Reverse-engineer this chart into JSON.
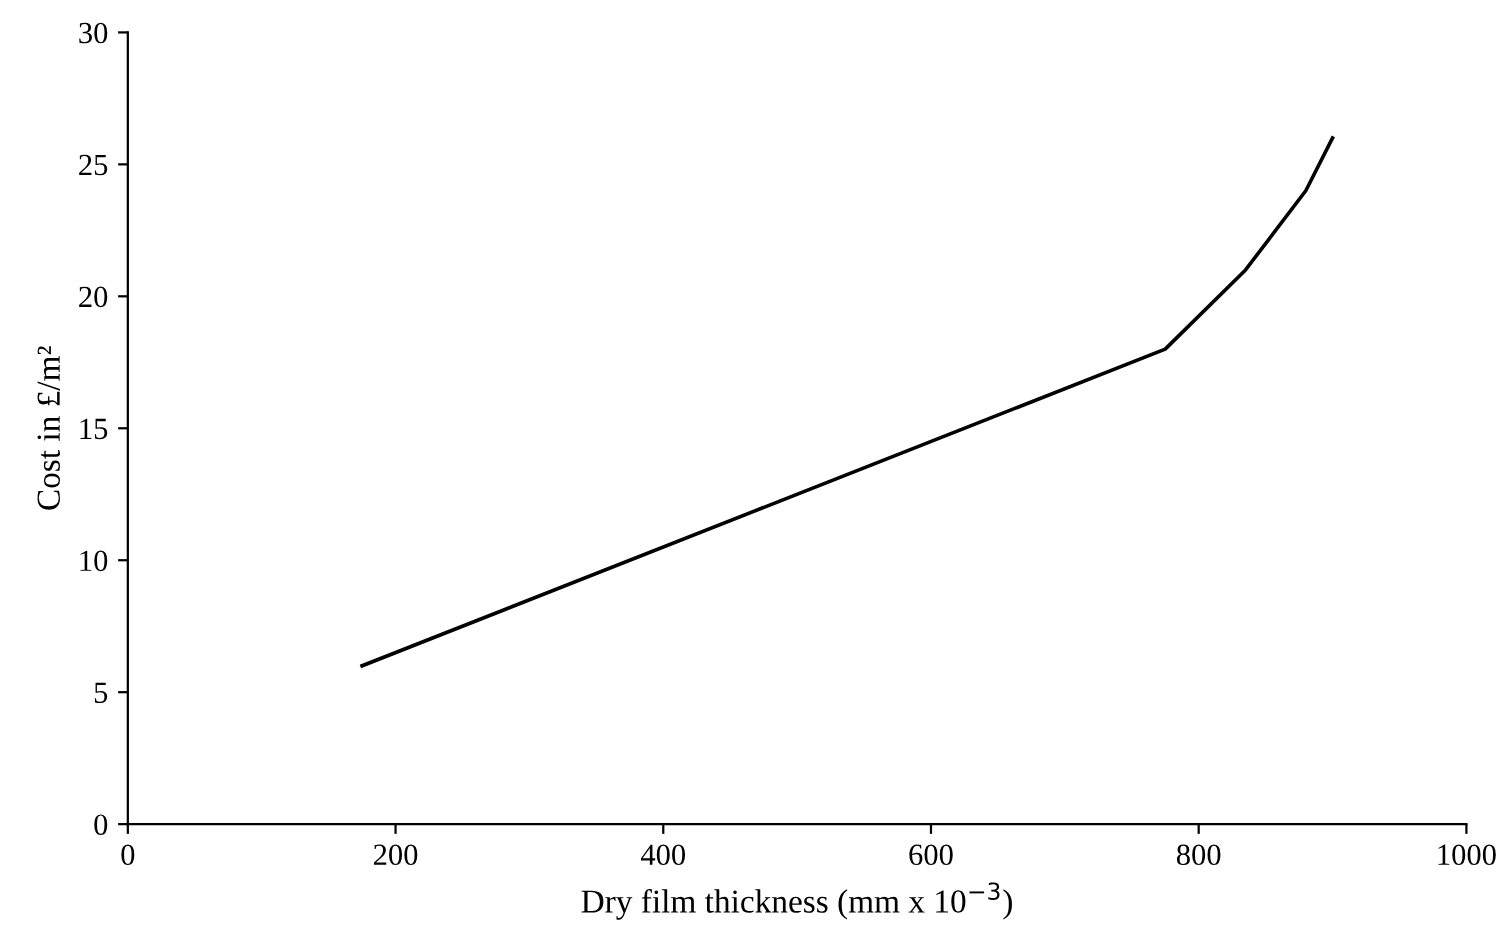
{
  "chart_data": {
    "type": "line",
    "xlabel": "Dry film thickness (mm x 10$^{−3}$)",
    "ylabel": "Cost in £/m²",
    "series": [
      {
        "color": "#000000",
        "x": [
          175,
          775,
          835,
          880,
          900
        ],
        "values": [
          6,
          18,
          21,
          24,
          26
        ]
      }
    ],
    "xlim": [
      0,
      1000
    ],
    "xticks": [
      0,
      200,
      400,
      600,
      800,
      1000
    ],
    "ylim": [
      0,
      30
    ],
    "yticks": [
      0,
      5,
      10,
      15,
      20,
      25,
      30
    ],
    "grid": false,
    "marker": "none",
    "line_style": "solid"
  }
}
